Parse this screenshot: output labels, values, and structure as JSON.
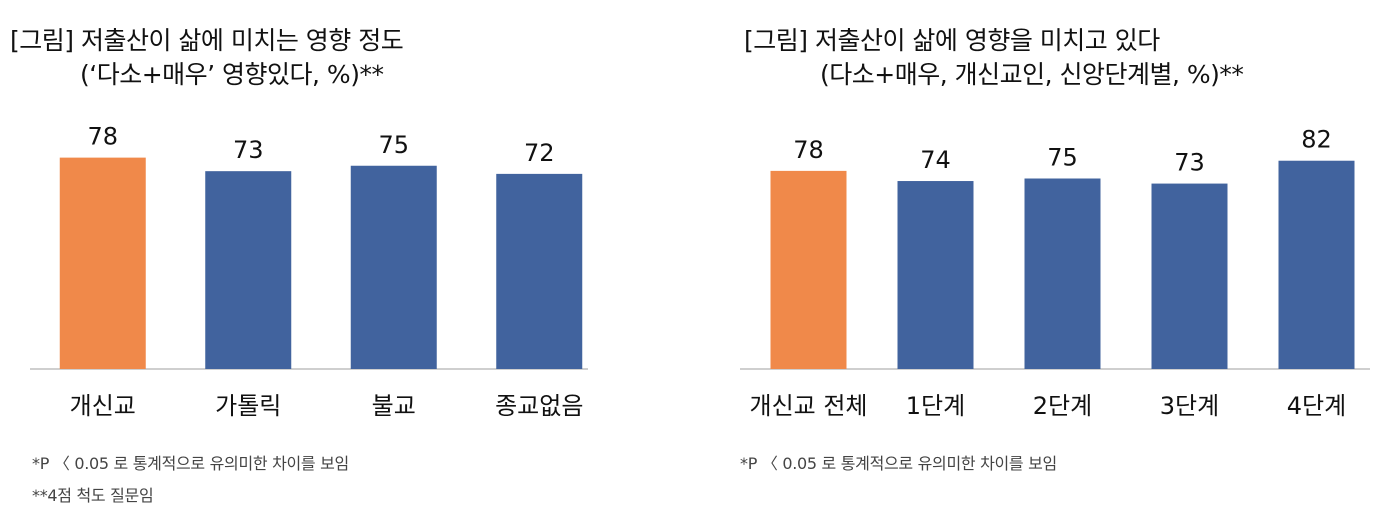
{
  "chart_data": [
    {
      "type": "bar",
      "title": "[그림] 저출산이 삶에 미치는 영향 정도",
      "subtitle": "(‘다소+매우’ 영향있다, %)**",
      "categories": [
        "개신교",
        "가톨릭",
        "불교",
        "종교없음"
      ],
      "values": [
        78,
        73,
        75,
        72
      ],
      "colors": [
        "#F0894A",
        "#41639E",
        "#41639E",
        "#41639E"
      ],
      "ylim": [
        0,
        90
      ],
      "notes": [
        "*P 〈 0.05 로 통계적으로 유의미한 차이를 보임",
        "**4점 척도 질문임"
      ]
    },
    {
      "type": "bar",
      "title": "[그림] 저출산이 삶에 영향을 미치고 있다",
      "subtitle": "(다소+매우, 개신교인, 신앙단계별, %)**",
      "categories": [
        "개신교 전체",
        "1단계",
        "2단계",
        "3단계",
        "4단계"
      ],
      "values": [
        78,
        74,
        75,
        73,
        82
      ],
      "colors": [
        "#F0894A",
        "#41639E",
        "#41639E",
        "#41639E",
        "#41639E"
      ],
      "ylim": [
        0,
        90
      ],
      "notes": [
        "*P 〈 0.05 로 통계적으로 유의미한 차이를 보임"
      ]
    }
  ]
}
